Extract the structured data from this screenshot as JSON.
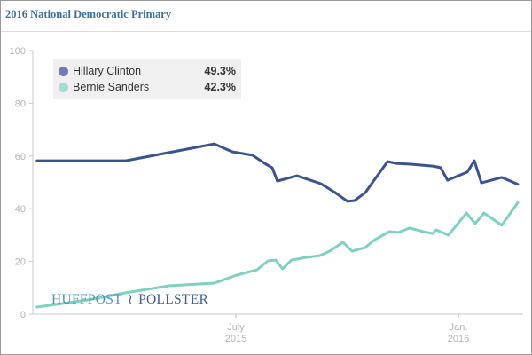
{
  "header": {
    "title": "2016 National Democratic Primary"
  },
  "legend": [
    {
      "name": "Hillary Clinton",
      "value": "49.3%",
      "color": "#6b7fb5"
    },
    {
      "name": "Bernie Sanders",
      "value": "42.3%",
      "color": "#a6dcd1"
    }
  ],
  "logo": {
    "left": "HUFFPOST",
    "right": "POLLSTER",
    "icon": "bird-icon"
  },
  "chart_data": {
    "type": "line",
    "title": "2016 National Democratic Primary",
    "xlabel": "",
    "ylabel": "",
    "x_units": "months since Jan. 2015",
    "xlim": [
      0.64,
      13.6
    ],
    "ylim": [
      0,
      100
    ],
    "yticks": [
      0,
      20,
      40,
      60,
      80,
      100
    ],
    "xticks": [
      {
        "x": 6,
        "label1": "July",
        "label2": "2015"
      },
      {
        "x": 12,
        "label1": "Jan.",
        "label2": "2016"
      }
    ],
    "grid": false,
    "legend_position": "top-left",
    "series": [
      {
        "name": "Hillary Clinton",
        "color": "#3b5491",
        "x": [
          0.64,
          3.03,
          5.42,
          5.9,
          6.45,
          6.81,
          6.98,
          7.12,
          7.65,
          8.01,
          8.29,
          8.68,
          9.01,
          9.2,
          9.49,
          9.66,
          10.09,
          10.33,
          10.71,
          11.31,
          11.52,
          11.71,
          12.24,
          12.43,
          12.62,
          13.17,
          13.6
        ],
        "y": [
          58.2,
          58.2,
          64.6,
          61.6,
          60.3,
          56.9,
          55.6,
          50.5,
          52.5,
          50.8,
          49.5,
          46.1,
          42.8,
          43.1,
          46.1,
          49.5,
          57.9,
          57.2,
          56.9,
          56.2,
          55.6,
          50.8,
          53.9,
          58.2,
          49.8,
          51.9,
          49.3
        ]
      },
      {
        "name": "Bernie Sanders",
        "color": "#7fd1c2",
        "x": [
          0.64,
          2.0,
          3.03,
          4.22,
          5.42,
          6.02,
          6.57,
          6.86,
          7.07,
          7.26,
          7.5,
          7.88,
          8.26,
          8.53,
          8.89,
          9.13,
          9.49,
          9.75,
          10.14,
          10.38,
          10.69,
          11.05,
          11.31,
          11.4,
          11.73,
          12.22,
          12.45,
          12.69,
          13.17,
          13.6
        ],
        "y": [
          2.7,
          5.4,
          8.1,
          10.8,
          11.8,
          14.8,
          16.8,
          20.2,
          20.5,
          17.2,
          20.5,
          21.5,
          22.2,
          23.9,
          27.3,
          23.9,
          25.3,
          28.3,
          31.3,
          31.0,
          32.7,
          31.3,
          30.6,
          32.0,
          30.0,
          38.4,
          34.3,
          38.4,
          33.7,
          42.3
        ]
      }
    ]
  }
}
